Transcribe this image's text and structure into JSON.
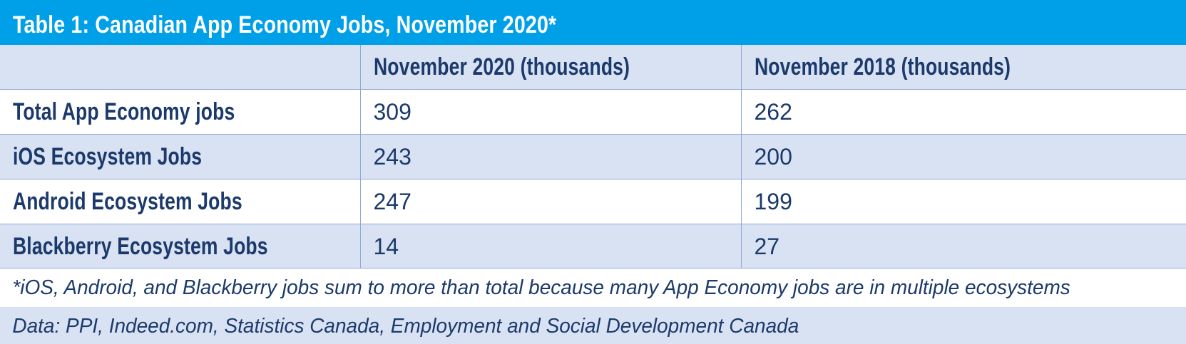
{
  "title": "Table 1: Canadian App Economy Jobs, November 2020*",
  "colors": {
    "title_bg": "#00a0e9",
    "title_text": "#ffffff",
    "text": "#1b3a6b",
    "row_shade": "#d9e2f3",
    "row_white": "#ffffff",
    "grid_line": "#8fa8d6"
  },
  "chart_data": {
    "type": "table",
    "title": "Table 1: Canadian App Economy Jobs, November 2020*",
    "columns": [
      "",
      "November 2020 (thousands)",
      "November 2018 (thousands)"
    ],
    "rows": [
      {
        "label": "Total App Economy jobs",
        "values": [
          "309",
          "262"
        ]
      },
      {
        "label": "iOS Ecosystem Jobs",
        "values": [
          "243",
          "200"
        ]
      },
      {
        "label": "Android Ecosystem Jobs",
        "values": [
          "247",
          "199"
        ]
      },
      {
        "label": "Blackberry Ecosystem Jobs",
        "values": [
          "14",
          "27"
        ]
      }
    ],
    "footnote": "*iOS, Android, and Blackberry jobs sum to more than total because many App Economy jobs are in multiple ecosystems",
    "source": "Data: PPI, Indeed.com, Statistics Canada, Employment and Social Development Canada"
  }
}
